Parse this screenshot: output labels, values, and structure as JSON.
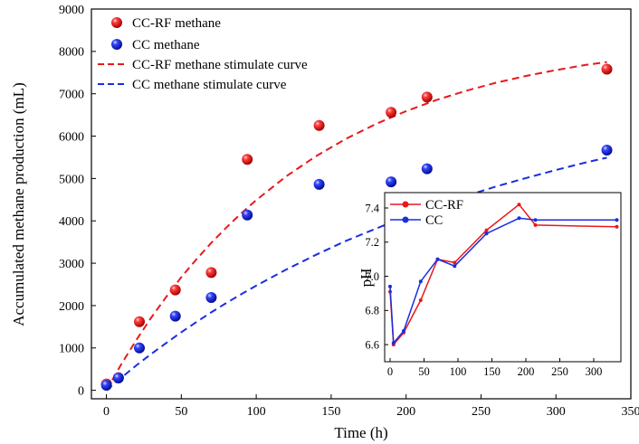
{
  "chart_data": [
    {
      "type": "scatter",
      "role": "main",
      "xlabel": "Time (h)",
      "ylabel": "Accumulated methane production (mL)",
      "xlim": [
        -10,
        350
      ],
      "ylim": [
        -200,
        9000
      ],
      "xticks": [
        0,
        50,
        100,
        150,
        200,
        250,
        300,
        350
      ],
      "yticks": [
        0,
        1000,
        2000,
        3000,
        4000,
        5000,
        6000,
        7000,
        8000,
        9000
      ],
      "grid": false,
      "legend_position": "top-left",
      "series": [
        {
          "name": "CC-RF methane",
          "kind": "points",
          "color": "#e8191b",
          "x": [
            0,
            8,
            22,
            46,
            70,
            94,
            142,
            190,
            214,
            334
          ],
          "y": [
            150,
            300,
            1620,
            2370,
            2780,
            5450,
            6250,
            6560,
            6920,
            7580
          ]
        },
        {
          "name": "CC methane",
          "kind": "points",
          "color": "#1a2ee0",
          "x": [
            0,
            8,
            22,
            46,
            70,
            94,
            142,
            190,
            214,
            334
          ],
          "y": [
            120,
            290,
            1000,
            1750,
            2190,
            4140,
            4860,
            4920,
            5230,
            5670
          ]
        },
        {
          "name": "CC-RF methane stimulate curve",
          "kind": "dashed-line",
          "color": "#e8191b",
          "x": [
            0,
            10,
            20,
            30,
            40,
            50,
            60,
            70,
            80,
            90,
            100,
            120,
            140,
            160,
            180,
            200,
            220,
            240,
            260,
            280,
            300,
            320,
            334
          ],
          "y": [
            0,
            620,
            1190,
            1720,
            2210,
            2670,
            3090,
            3480,
            3840,
            4180,
            4490,
            5050,
            5530,
            5940,
            6290,
            6590,
            6850,
            7070,
            7260,
            7420,
            7560,
            7680,
            7750
          ]
        },
        {
          "name": "CC methane stimulate curve",
          "kind": "dashed-line",
          "color": "#1a2ee0",
          "x": [
            0,
            10,
            20,
            30,
            40,
            50,
            60,
            70,
            80,
            90,
            100,
            120,
            140,
            160,
            180,
            200,
            220,
            240,
            260,
            280,
            300,
            320,
            334
          ],
          "y": [
            0,
            300,
            590,
            860,
            1120,
            1370,
            1610,
            1840,
            2060,
            2270,
            2470,
            2850,
            3200,
            3530,
            3820,
            4100,
            4350,
            4590,
            4810,
            5010,
            5200,
            5380,
            5490
          ]
        }
      ]
    },
    {
      "type": "line",
      "role": "inset",
      "xlabel": "",
      "ylabel": "pH",
      "xlim": [
        -8,
        340
      ],
      "ylim": [
        6.5,
        7.49
      ],
      "xticks": [
        0,
        50,
        100,
        150,
        200,
        250,
        300
      ],
      "yticks": [
        6.6,
        6.8,
        7.0,
        7.2,
        7.4
      ],
      "ytick_labels": [
        "6.6",
        "6.8",
        "7.0",
        "7.2",
        "7.4"
      ],
      "grid": false,
      "legend_position": "top-left",
      "series": [
        {
          "name": "CC-RF",
          "color": "#e8191b",
          "x": [
            0,
            5,
            20,
            45,
            70,
            95,
            142,
            190,
            214,
            334
          ],
          "y": [
            6.91,
            6.6,
            6.67,
            6.86,
            7.1,
            7.08,
            7.27,
            7.42,
            7.3,
            7.29
          ]
        },
        {
          "name": "CC",
          "color": "#1a2ee0",
          "x": [
            0,
            5,
            20,
            45,
            70,
            95,
            142,
            190,
            214,
            334
          ],
          "y": [
            6.94,
            6.61,
            6.68,
            6.97,
            7.1,
            7.06,
            7.25,
            7.34,
            7.33,
            7.33
          ]
        }
      ]
    }
  ]
}
